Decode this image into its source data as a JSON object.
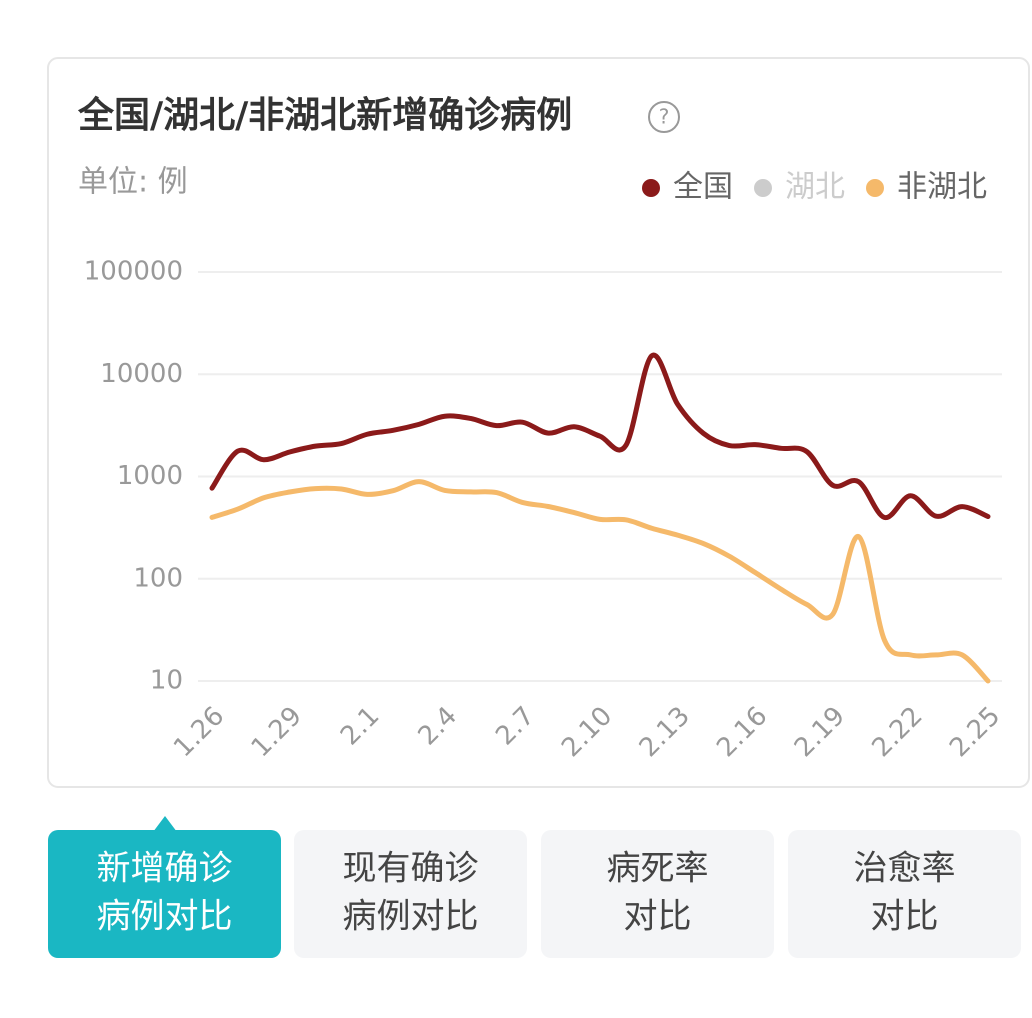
{
  "chart_data": {
    "type": "line",
    "title": "全国/湖北/非湖北新增确诊病例",
    "help_icon": "?",
    "unit_label": "单位: 例",
    "log_scale": true,
    "grid": true,
    "legend_position": "top-right",
    "categories": [
      "1.26",
      null,
      null,
      "1.29",
      null,
      null,
      "2.1",
      null,
      null,
      "2.4",
      null,
      null,
      "2.7",
      null,
      null,
      "2.10",
      null,
      null,
      "2.13",
      null,
      null,
      "2.16",
      null,
      null,
      "2.19",
      null,
      null,
      "2.22",
      null,
      null,
      "2.25"
    ],
    "ylim": [
      10,
      100000
    ],
    "yticks": [
      10,
      100,
      1000,
      10000,
      100000
    ],
    "series": [
      {
        "name": "全国",
        "color": "#8b1a1a",
        "values": [
          769,
          1771,
          1459,
          1737,
          1982,
          2102,
          2590,
          2829,
          3235,
          3887,
          3694,
          3143,
          3399,
          2656,
          3062,
          2478,
          2015,
          15152,
          5090,
          2641,
          2009,
          2048,
          1886,
          1749,
          820,
          889,
          397,
          648,
          409,
          508,
          406
        ]
      },
      {
        "name": "湖北",
        "color": "#cccccc",
        "hidden": true
      },
      {
        "name": "非湖北",
        "color": "#f5b96a",
        "values": [
          398,
          480,
          619,
          705,
          762,
          755,
          669,
          726,
          890,
          731,
          707,
          696,
          558,
          509,
          444,
          381,
          377,
          312,
          267,
          221,
          166,
          115,
          79,
          56,
          45,
          258,
          25,
          18,
          18,
          18,
          10
        ]
      }
    ]
  },
  "tabs": [
    {
      "lines": [
        "新增确诊",
        "病例对比"
      ],
      "active": true
    },
    {
      "lines": [
        "现有确诊",
        "病例对比"
      ],
      "active": false
    },
    {
      "lines": [
        "病死率",
        "对比"
      ],
      "active": false
    },
    {
      "lines": [
        "治愈率",
        "对比"
      ],
      "active": false
    }
  ]
}
